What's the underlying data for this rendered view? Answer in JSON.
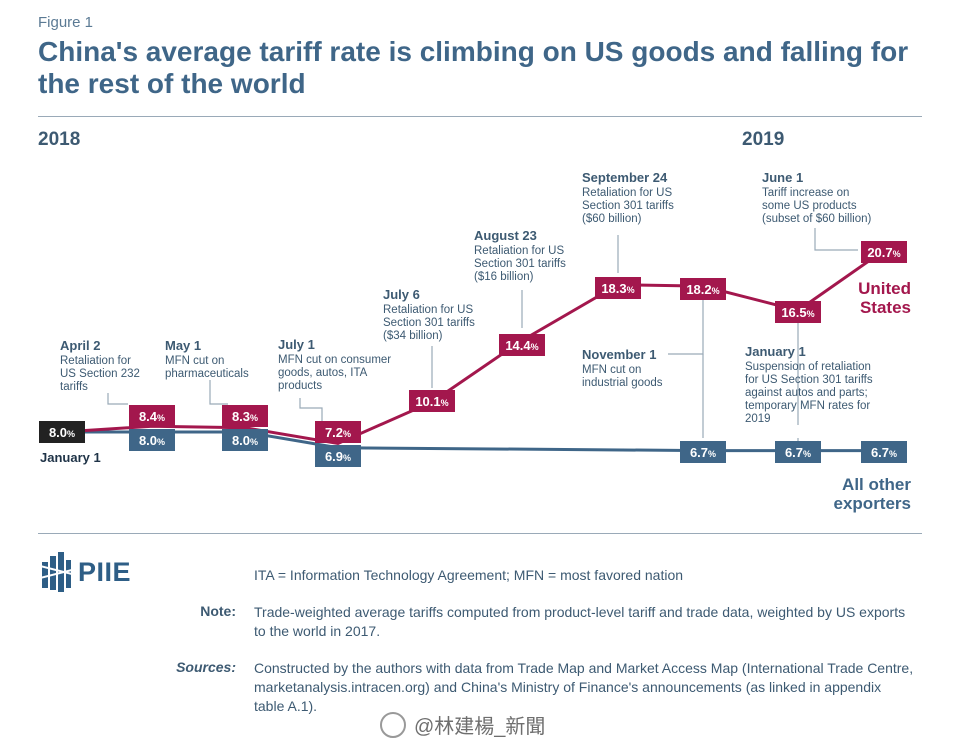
{
  "figure_label": "Figure 1",
  "title": "China's average tariff rate is climbing on US goods and falling for the rest of the world",
  "colors": {
    "us": "#a3174d",
    "others": "#3f6688",
    "text": "#3d5a72",
    "black_box": "#222222"
  },
  "chart_data": {
    "type": "line",
    "year_labels": [
      "2018",
      "2019"
    ],
    "series": [
      {
        "name": "United States",
        "name_lines": [
          "United",
          "States"
        ],
        "values": [
          "8.0",
          "8.4",
          "8.3",
          "7.2",
          "10.1",
          "14.4",
          "18.3",
          "18.2",
          "16.5",
          "20.7"
        ]
      },
      {
        "name": "All other exporters",
        "name_lines": [
          "All other",
          "exporters"
        ],
        "values": [
          "8.0",
          "8.0",
          "8.0",
          "6.9",
          "6.7",
          "6.7",
          "6.7"
        ]
      }
    ],
    "start_point": {
      "value": "8.0",
      "label": "January 1"
    },
    "annotations": [
      {
        "date": "April 2",
        "lines": [
          "Retaliation for",
          "US Section 232",
          "tariffs"
        ]
      },
      {
        "date": "May 1",
        "lines": [
          "MFN cut on",
          "pharmaceuticals"
        ]
      },
      {
        "date": "July 1",
        "lines": [
          "MFN cut on consumer",
          "goods, autos, ITA",
          "products"
        ]
      },
      {
        "date": "July 6",
        "lines": [
          "Retaliation for US",
          "Section 301 tariffs",
          "($34 billion)"
        ]
      },
      {
        "date": "August 23",
        "lines": [
          "Retaliation for US",
          "Section 301 tariffs",
          "($16 billion)"
        ]
      },
      {
        "date": "September 24",
        "lines": [
          "Retaliation for US",
          "Section 301 tariffs",
          "($60 billion)"
        ]
      },
      {
        "date": "November 1",
        "lines": [
          "MFN cut on",
          "industrial goods"
        ]
      },
      {
        "date": "January 1",
        "lines": [
          "Suspension of retaliation",
          "for US Section 301 tariffs",
          "against autos and parts;",
          "temporary MFN rates for",
          "2019"
        ]
      },
      {
        "date": "June 1",
        "lines": [
          "Tariff increase on",
          "some US products",
          "(subset of $60 billion)"
        ]
      }
    ]
  },
  "footer": {
    "logo_text": "PIIE",
    "abbrev": "ITA = Information Technology Agreement; MFN = most favored nation",
    "note_label": "Note:",
    "note_text": "Trade-weighted average tariffs computed from product-level tariff and trade data, weighted by US exports to the world in 2017.",
    "sources_label": "Sources:",
    "sources_text": "Constructed by the authors with data from Trade Map and Market Access Map (International Trade Centre, marketanalysis.intracen.org) and China's Ministry of Finance's announcements (as linked in appendix table A.1).",
    "watermark": "@林建楊_新聞"
  }
}
